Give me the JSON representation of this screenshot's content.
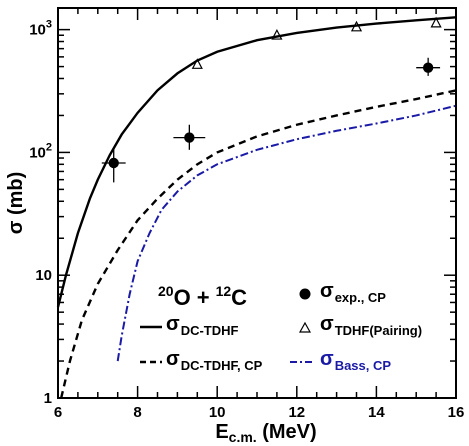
{
  "chart_data": {
    "type": "line",
    "xlabel": {
      "main": "E",
      "sub": "c.m.",
      "unit": " (MeV)"
    },
    "ylabel": "σ (mb)",
    "xlim": [
      6,
      16
    ],
    "ylim": [
      1,
      1500
    ],
    "yscale": "log",
    "grid": false,
    "xticks": [
      6,
      8,
      10,
      12,
      14,
      16
    ],
    "yticks": [
      {
        "value": 1,
        "label": "1"
      },
      {
        "value": 10,
        "label": "10"
      },
      {
        "value": 100,
        "label": "10",
        "sup": "2"
      },
      {
        "value": 1000,
        "label": "10",
        "sup": "3"
      }
    ],
    "reaction": {
      "a_mass": "20",
      "a_sym": "O",
      "plus": "+",
      "b_mass": "12",
      "b_sym": "C"
    },
    "series": [
      {
        "name": {
          "sym": "σ",
          "sub": "DC-TDHF"
        },
        "style": "solid",
        "color": "#000000",
        "points": [
          [
            6.0,
            5.5
          ],
          [
            6.2,
            10
          ],
          [
            6.5,
            22
          ],
          [
            6.8,
            42
          ],
          [
            7.0,
            60
          ],
          [
            7.3,
            95
          ],
          [
            7.6,
            140
          ],
          [
            8.0,
            210
          ],
          [
            8.5,
            320
          ],
          [
            9.0,
            440
          ],
          [
            9.5,
            560
          ],
          [
            10.0,
            660
          ],
          [
            11.0,
            820
          ],
          [
            12.0,
            940
          ],
          [
            13.0,
            1040
          ],
          [
            14.0,
            1120
          ],
          [
            15.0,
            1190
          ],
          [
            16.0,
            1260
          ]
        ]
      },
      {
        "name": {
          "sym": "σ",
          "sub": "DC-TDHF, CP"
        },
        "style": "dashed",
        "color": "#000000",
        "points": [
          [
            6.08,
            1.0
          ],
          [
            6.3,
            2.0
          ],
          [
            6.6,
            4.3
          ],
          [
            7.0,
            8.5
          ],
          [
            7.5,
            16
          ],
          [
            8.0,
            28
          ],
          [
            8.5,
            42
          ],
          [
            9.0,
            60
          ],
          [
            9.5,
            80
          ],
          [
            10.0,
            100
          ],
          [
            11.0,
            135
          ],
          [
            12.0,
            168
          ],
          [
            13.0,
            200
          ],
          [
            14.0,
            235
          ],
          [
            15.0,
            272
          ],
          [
            16.0,
            320
          ]
        ]
      },
      {
        "name": {
          "sym": "σ",
          "sub": "Bass, CP"
        },
        "style": "dashdot",
        "color": "#1a1aa6",
        "points": [
          [
            7.5,
            2.0
          ],
          [
            7.6,
            3.2
          ],
          [
            7.8,
            7
          ],
          [
            8.0,
            13
          ],
          [
            8.3,
            22
          ],
          [
            8.6,
            34
          ],
          [
            9.0,
            48
          ],
          [
            9.5,
            65
          ],
          [
            10.0,
            80
          ],
          [
            11.0,
            105
          ],
          [
            12.0,
            128
          ],
          [
            13.0,
            150
          ],
          [
            14.0,
            172
          ],
          [
            15.0,
            200
          ],
          [
            16.0,
            240
          ]
        ]
      },
      {
        "name": {
          "sym": "σ",
          "sub": "exp., CP"
        },
        "style": "markers-filled",
        "color": "#000000",
        "points": [
          {
            "x": 7.4,
            "y": 82,
            "xerr": 0.3,
            "ylow": 57,
            "yhigh": 108
          },
          {
            "x": 9.3,
            "y": 132,
            "xerr": 0.4,
            "ylow": 105,
            "yhigh": 168
          },
          {
            "x": 15.3,
            "y": 490,
            "xerr": 0.3,
            "ylow": 420,
            "yhigh": 590
          }
        ]
      },
      {
        "name": {
          "sym": "σ",
          "sub": "TDHF(Pairing)"
        },
        "style": "markers-open-triangle",
        "color": "#000000",
        "points": [
          [
            9.5,
            520
          ],
          [
            11.5,
            900
          ],
          [
            13.5,
            1050
          ],
          [
            15.5,
            1130
          ]
        ]
      }
    ]
  }
}
